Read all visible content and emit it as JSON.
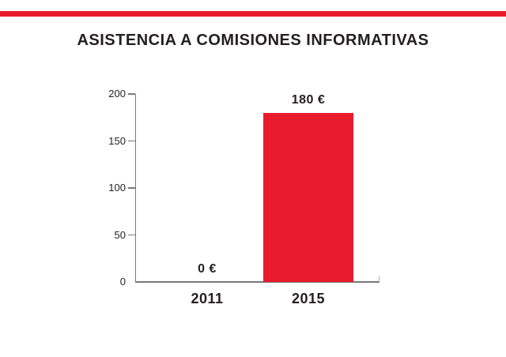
{
  "title": "ASISTENCIA A COMISIONES INFORMATIVAS",
  "top_bar": {
    "color": "#e81c2c"
  },
  "chart_data": {
    "type": "bar",
    "title": "ASISTENCIA A COMISIONES INFORMATIVAS",
    "categories": [
      "2011",
      "2015"
    ],
    "values": [
      0,
      180
    ],
    "value_labels": [
      "0 €",
      "180 €"
    ],
    "ytick_values": [
      0,
      50,
      100,
      150,
      200
    ],
    "ytick_labels": [
      "0",
      "50",
      "100",
      "150",
      "200"
    ],
    "ylim": [
      0,
      200
    ],
    "xlabel": "",
    "ylabel": "",
    "grid": false,
    "legend": false,
    "bar_color": "#e81c2c",
    "axis_color": "#77787b",
    "end_tick_color": "#a7a9ac",
    "text_color": "#231f20"
  }
}
